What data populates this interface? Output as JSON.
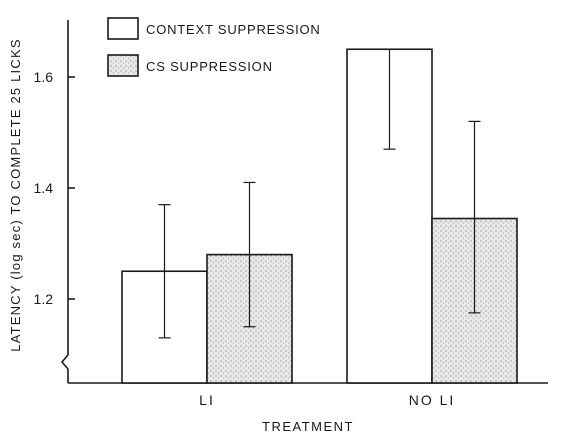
{
  "chart_data": {
    "type": "bar",
    "xlabel": "TREATMENT",
    "ylabel": "LATENCY (log sec) TO COMPLETE 25 LICKS",
    "categories": [
      "LI",
      "NO LI"
    ],
    "ylim": [
      1.0,
      1.7
    ],
    "yticks": [
      "1.2",
      "1.4",
      "1.6"
    ],
    "axis_break": true,
    "grid": false,
    "legend_position": "top-left",
    "series": [
      {
        "name": "CONTEXT SUPPRESSION",
        "fill": "#ffffff",
        "values": [
          1.25,
          1.65
        ],
        "error_low": [
          1.13,
          1.47
        ],
        "error_high": [
          1.37,
          1.65
        ]
      },
      {
        "name": "CS SUPPRESSION",
        "fill": "#e6e6e6",
        "pattern": "stippled",
        "values": [
          1.28,
          1.345
        ],
        "error_low": [
          1.15,
          1.175
        ],
        "error_high": [
          1.41,
          1.52
        ]
      }
    ]
  }
}
